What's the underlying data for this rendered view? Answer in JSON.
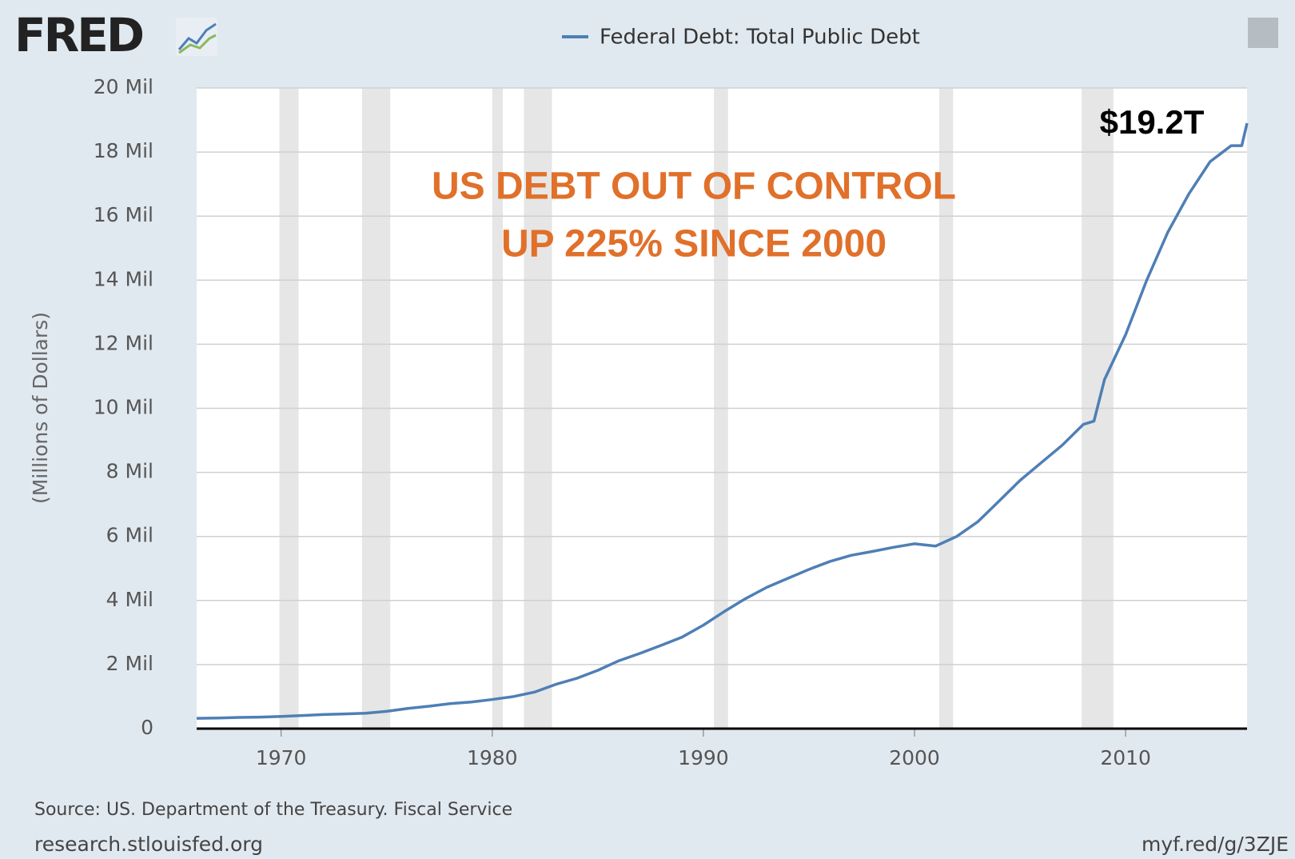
{
  "logo": "FRED",
  "source": "Source: US. Department of the Treasury. Fiscal Service",
  "site": "research.stlouisfed.org",
  "short_url": "myf.red/g/3ZJE",
  "chart_data": {
    "type": "line",
    "y_label": "(Millions of Dollars)",
    "annotations": [
      "US DEBT OUT OF CONTROL",
      "UP 225% SINCE 2000",
      "$19.2T"
    ],
    "x": [
      1966,
      1967,
      1968,
      1969,
      1970,
      1971,
      1972,
      1973,
      1974,
      1975,
      1976,
      1977,
      1978,
      1979,
      1980,
      1981,
      1982,
      1983,
      1984,
      1985,
      1986,
      1987,
      1988,
      1989,
      1990,
      1991,
      1992,
      1993,
      1994,
      1995,
      1996,
      1997,
      1998,
      1999,
      2000,
      2001,
      2002,
      2003,
      2004,
      2005,
      2006,
      2007,
      2008,
      2008.5,
      2009,
      2010,
      2011,
      2012,
      2013,
      2014,
      2015,
      2015.5,
      2015.75
    ],
    "series": [
      {
        "name": "Federal Debt: Total Public Debt",
        "color": "#4e7fb5",
        "values": [
          320000,
          330000,
          350000,
          360000,
          380000,
          410000,
          440000,
          460000,
          480000,
          540000,
          630000,
          700000,
          780000,
          830000,
          910000,
          1000000,
          1140000,
          1380000,
          1570000,
          1820000,
          2120000,
          2350000,
          2600000,
          2860000,
          3230000,
          3660000,
          4060000,
          4410000,
          4690000,
          4970000,
          5220000,
          5410000,
          5530000,
          5660000,
          5770000,
          5700000,
          6000000,
          6460000,
          7100000,
          7750000,
          8300000,
          8850000,
          9500000,
          9600000,
          10900000,
          12300000,
          14000000,
          15500000,
          16700000,
          17700000,
          18200000,
          18200000,
          18900000
        ]
      }
    ],
    "recessions": [
      [
        1969.92,
        1970.83
      ],
      [
        1973.83,
        1975.17
      ],
      [
        1980.0,
        1980.5
      ],
      [
        1981.5,
        1982.83
      ],
      [
        1990.5,
        1991.17
      ],
      [
        2001.17,
        2001.83
      ],
      [
        2007.92,
        2009.42
      ]
    ],
    "xlim": [
      1966,
      2015.75
    ],
    "xticks": [
      1970,
      1980,
      1990,
      2000,
      2010
    ],
    "ylim": [
      0,
      20000000
    ],
    "yticks": [
      0,
      {
        "value": 2000000,
        "label": "2 Mil"
      },
      {
        "value": 4000000,
        "label": "4 Mil"
      },
      {
        "value": 6000000,
        "label": "6 Mil"
      },
      {
        "value": 8000000,
        "label": "8 Mil"
      },
      {
        "value": 10000000,
        "label": "10 Mil"
      },
      {
        "value": 12000000,
        "label": "12 Mil"
      },
      {
        "value": 14000000,
        "label": "14 Mil"
      },
      {
        "value": 16000000,
        "label": "16 Mil"
      },
      {
        "value": 18000000,
        "label": "18 Mil"
      },
      {
        "value": 20000000,
        "label": "20 Mil"
      }
    ],
    "grid": true
  }
}
